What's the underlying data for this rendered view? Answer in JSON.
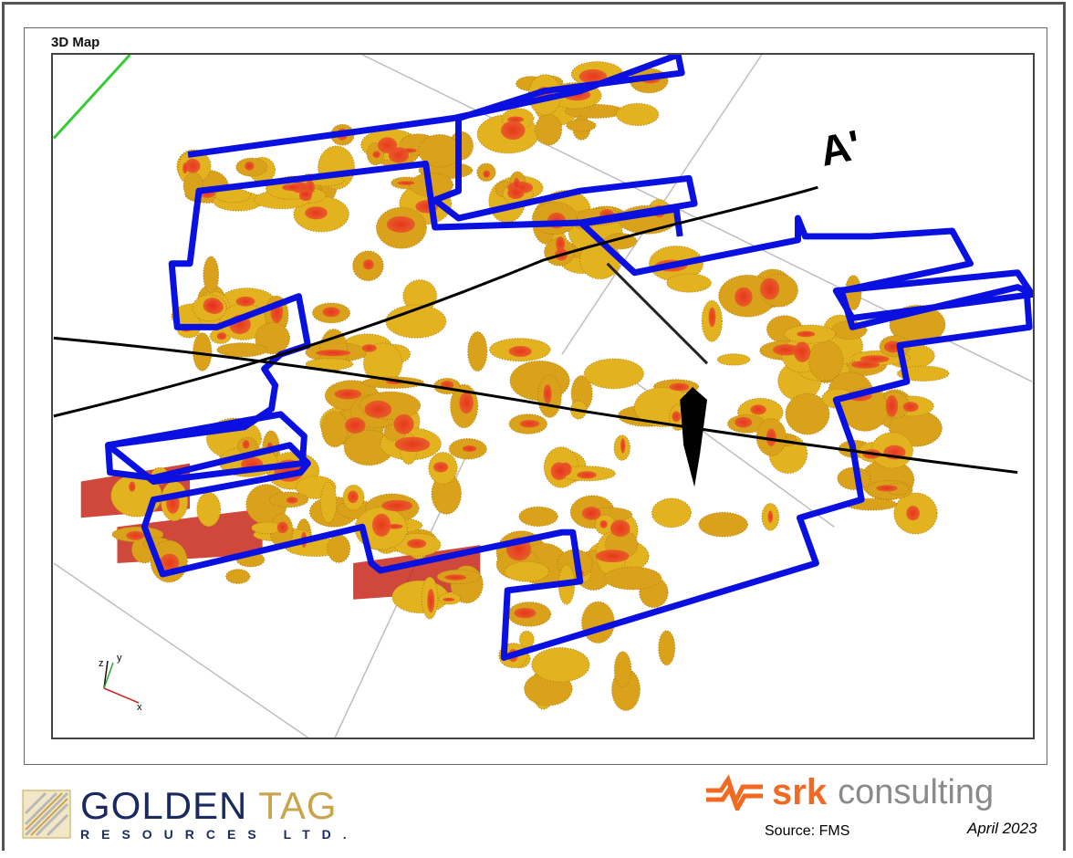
{
  "map": {
    "title": "3D Map",
    "section_label": "A'",
    "axes": {
      "x": "x",
      "y": "y",
      "z": "z"
    },
    "colors": {
      "boundary": "#0a10e0",
      "section_line": "#000000",
      "body_low": "#e0b020",
      "body_high": "#e82a1c",
      "grid": "#bdbdbd",
      "axis_green": "#33cc33"
    }
  },
  "footer": {
    "company_main_1": "GOLDEN",
    "company_main_2": "TAG",
    "company_sub": "RESOURCES LTD.",
    "consultant_bold": "srk",
    "consultant_light": "consulting",
    "source": "Source: FMS",
    "date": "April 2023"
  }
}
